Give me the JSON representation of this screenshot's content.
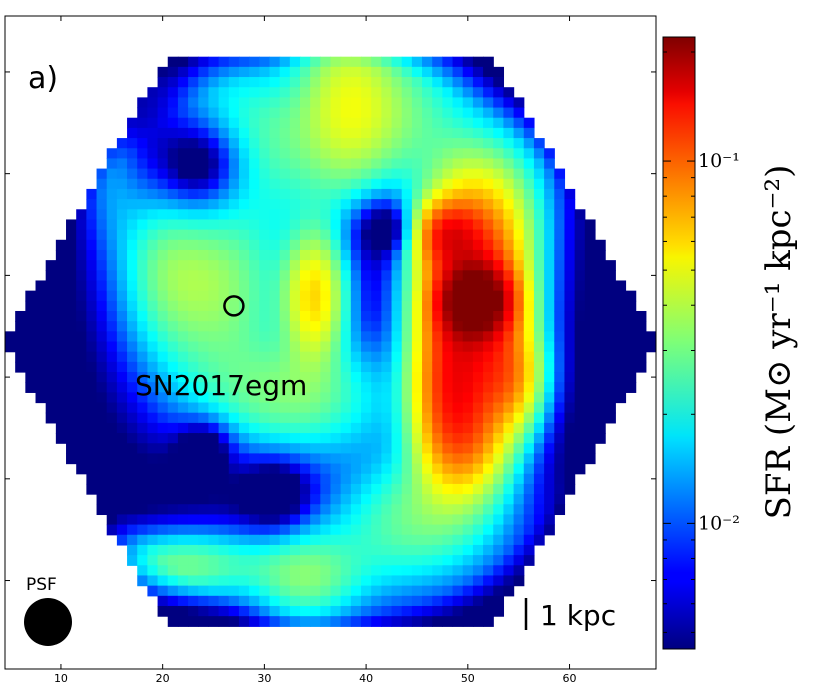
{
  "chart_data": {
    "type": "heatmap",
    "panel_label": "a)",
    "x_ticks": [
      10,
      20,
      30,
      40,
      50,
      60
    ],
    "xlim": [
      4.5,
      68.5
    ],
    "colorbar": {
      "label": "SFR (M⊙ yr⁻¹ kpc⁻²)",
      "scale": "log",
      "range": [
        0.0045,
        0.22
      ],
      "ticks": [
        {
          "value": 0.01,
          "label": "10⁻²"
        },
        {
          "value": 0.1,
          "label": "10⁻¹"
        }
      ],
      "colormap": "jet"
    },
    "annotations": {
      "supernova": {
        "label": "SN2017egm",
        "x": 27,
        "y": 33
      },
      "psf": {
        "label": "PSF"
      },
      "scalebar": {
        "label": "1 kpc",
        "length": 1
      }
    },
    "sfr_blobs": [
      {
        "x": 50.8,
        "y": 32.5,
        "sigma_x": 2.2,
        "sigma_y": 2.2,
        "sfr": 0.2
      },
      {
        "x": 50.5,
        "y": 30.5,
        "sigma_x": 3.4,
        "sigma_y": 6.8,
        "sfr": 0.12
      },
      {
        "x": 48.5,
        "y": 41.0,
        "sigma_x": 2.4,
        "sigma_y": 5.0,
        "sfr": 0.09
      },
      {
        "x": 47.5,
        "y": 26.0,
        "sigma_x": 2.2,
        "sigma_y": 2.0,
        "sfr": 0.08
      },
      {
        "x": 54.0,
        "y": 40.0,
        "sigma_x": 2.2,
        "sigma_y": 3.5,
        "sfr": 0.06
      },
      {
        "x": 50.0,
        "y": 46.5,
        "sigma_x": 3.0,
        "sigma_y": 3.5,
        "sfr": 0.045
      },
      {
        "x": 35.0,
        "y": 32.0,
        "sigma_x": 2.0,
        "sigma_y": 4.2,
        "sfr": 0.05
      },
      {
        "x": 25.0,
        "y": 31.0,
        "sigma_x": 5.0,
        "sigma_y": 6.5,
        "sfr": 0.03
      },
      {
        "x": 33.0,
        "y": 42.0,
        "sigma_x": 6.5,
        "sigma_y": 4.0,
        "sfr": 0.025
      },
      {
        "x": 38.0,
        "y": 13.0,
        "sigma_x": 3.5,
        "sigma_y": 7.0,
        "sfr": 0.035
      },
      {
        "x": 44.0,
        "y": 14.0,
        "sigma_x": 4.5,
        "sigma_y": 5.0,
        "sfr": 0.02
      },
      {
        "x": 30.0,
        "y": 17.0,
        "sigma_x": 4.0,
        "sigma_y": 5.0,
        "sfr": 0.02
      },
      {
        "x": 46.0,
        "y": 53.0,
        "sigma_x": 5.5,
        "sigma_y": 4.0,
        "sfr": 0.022
      },
      {
        "x": 22.0,
        "y": 58.5,
        "sigma_x": 5.5,
        "sigma_y": 2.2,
        "sfr": 0.025
      },
      {
        "x": 34.0,
        "y": 60.0,
        "sigma_x": 3.5,
        "sigma_y": 3.0,
        "sfr": 0.02
      },
      {
        "x": 25.0,
        "y": 14.0,
        "sigma_x": 3.5,
        "sigma_y": 5.0,
        "sfr": 0.01
      },
      {
        "x": 20.0,
        "y": 28.0,
        "sigma_x": 3.0,
        "sigma_y": 6.0,
        "sfr": 0.012
      },
      {
        "x": 55.0,
        "y": 22.0,
        "sigma_x": 3.0,
        "sigma_y": 5.0,
        "sfr": 0.01
      },
      {
        "x": 17.0,
        "y": 8.0,
        "sigma_x": 2.0,
        "sigma_y": 3.0,
        "sfr": 0.012
      },
      {
        "x": 15.0,
        "y": 20.0,
        "sigma_x": 2.0,
        "sigma_y": 5.0,
        "sfr": 0.008
      },
      {
        "x": 40.0,
        "y": 58.0,
        "sigma_x": 8.0,
        "sigma_y": 4.0,
        "sfr": 0.01
      }
    ],
    "voids": [
      {
        "x": 23.5,
        "y": 19.0,
        "r": 5.5
      },
      {
        "x": 42.0,
        "y": 25.5,
        "r": 3.5
      },
      {
        "x": 31.0,
        "y": 51.5,
        "r": 3.5
      },
      {
        "x": 24.0,
        "y": 47.0,
        "r": 3.0
      }
    ]
  }
}
